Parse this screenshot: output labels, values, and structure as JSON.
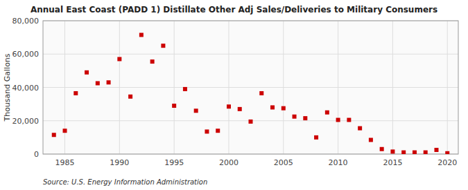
{
  "chart_data": {
    "type": "scatter",
    "title": "Annual East Coast (PADD 1) Distillate Other Adj Sales/Deliveries to Military Consumers",
    "ylabel": "Thousand Gallons",
    "annotations": [
      "Source: U.S. Energy Information Administration"
    ],
    "x": [
      1984,
      1985,
      1986,
      1987,
      1988,
      1989,
      1990,
      1991,
      1992,
      1993,
      1994,
      1995,
      1996,
      1997,
      1998,
      1999,
      2000,
      2001,
      2002,
      2003,
      2004,
      2005,
      2006,
      2007,
      2008,
      2009,
      2010,
      2011,
      2012,
      2013,
      2014,
      2015,
      2016,
      2017,
      2018,
      2019,
      2020
    ],
    "values": [
      11500,
      14000,
      36500,
      49000,
      42500,
      43000,
      57000,
      34500,
      71500,
      55500,
      65000,
      29000,
      39000,
      26000,
      13500,
      14000,
      28500,
      27000,
      19500,
      36500,
      28000,
      27500,
      22500,
      21500,
      10000,
      25000,
      20500,
      20500,
      15500,
      8500,
      3000,
      1500,
      1000,
      1000,
      1000,
      2500,
      500
    ],
    "color": "#cc0000",
    "marker": "square",
    "xlim": [
      1983,
      2021
    ],
    "ylim": [
      0,
      80000
    ],
    "xticks": [
      1985,
      1990,
      1995,
      2000,
      2005,
      2010,
      2015,
      2020
    ],
    "yticks": [
      0,
      {
        "value": 20000,
        "label": "20,000"
      },
      {
        "value": 40000,
        "label": "40,000"
      },
      {
        "value": 60000,
        "label": "60,000"
      },
      {
        "value": 80000,
        "label": "80,000"
      }
    ],
    "grid": true
  }
}
